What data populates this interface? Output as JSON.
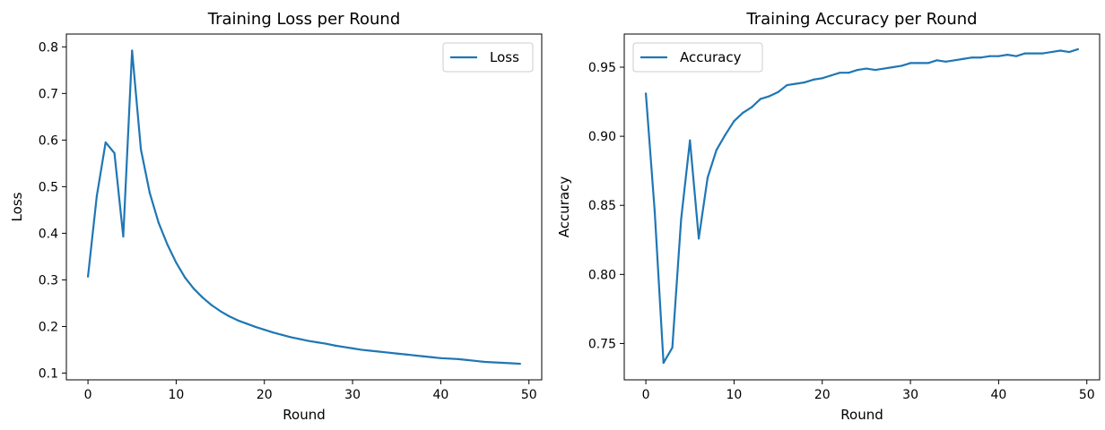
{
  "figure": {
    "line_color": "#1f77b4"
  },
  "chart_data": [
    {
      "type": "line",
      "title": "Training Loss per Round",
      "xlabel": "Round",
      "ylabel": "Loss",
      "xlim": [
        -2.45,
        51.45
      ],
      "ylim": [
        0.0855,
        0.8275
      ],
      "xticks": [
        0,
        10,
        20,
        30,
        40,
        50
      ],
      "yticks": [
        0.1,
        0.2,
        0.3,
        0.4,
        0.5,
        0.6,
        0.7,
        0.8
      ],
      "grid": false,
      "legend_position": "upper right",
      "series": [
        {
          "name": "Loss",
          "color": "#1f77b4",
          "x": [
            0,
            1,
            2,
            3,
            4,
            5,
            6,
            7,
            8,
            9,
            10,
            11,
            12,
            13,
            14,
            15,
            16,
            17,
            18,
            19,
            20,
            21,
            22,
            23,
            24,
            25,
            26,
            27,
            28,
            29,
            30,
            31,
            32,
            33,
            34,
            35,
            36,
            37,
            38,
            39,
            40,
            41,
            42,
            43,
            44,
            45,
            46,
            47,
            48,
            49
          ],
          "values": [
            0.307,
            0.48,
            0.595,
            0.572,
            0.393,
            0.792,
            0.58,
            0.487,
            0.423,
            0.376,
            0.337,
            0.305,
            0.281,
            0.262,
            0.246,
            0.233,
            0.222,
            0.213,
            0.206,
            0.199,
            0.193,
            0.187,
            0.182,
            0.177,
            0.173,
            0.169,
            0.166,
            0.163,
            0.159,
            0.156,
            0.153,
            0.15,
            0.148,
            0.146,
            0.144,
            0.142,
            0.14,
            0.138,
            0.136,
            0.134,
            0.132,
            0.131,
            0.13,
            0.128,
            0.126,
            0.124,
            0.123,
            0.122,
            0.121,
            0.12
          ]
        }
      ]
    },
    {
      "type": "line",
      "title": "Training Accuracy per Round",
      "xlabel": "Round",
      "ylabel": "Accuracy",
      "xlim": [
        -2.45,
        51.45
      ],
      "ylim": [
        0.7237,
        0.974
      ],
      "xticks": [
        0,
        10,
        20,
        30,
        40,
        50
      ],
      "yticks": [
        0.75,
        0.8,
        0.85,
        0.9,
        0.95
      ],
      "ytick_labels": [
        "0.75",
        "0.80",
        "0.85",
        "0.90",
        "0.95"
      ],
      "grid": false,
      "legend_position": "upper left",
      "series": [
        {
          "name": "Accuracy",
          "color": "#1f77b4",
          "x": [
            0,
            1,
            2,
            3,
            4,
            5,
            6,
            7,
            8,
            9,
            10,
            11,
            12,
            13,
            14,
            15,
            16,
            17,
            18,
            19,
            20,
            21,
            22,
            23,
            24,
            25,
            26,
            27,
            28,
            29,
            30,
            31,
            32,
            33,
            34,
            35,
            36,
            37,
            38,
            39,
            40,
            41,
            42,
            43,
            44,
            45,
            46,
            47,
            48,
            49
          ],
          "values": [
            0.931,
            0.846,
            0.736,
            0.747,
            0.84,
            0.897,
            0.826,
            0.87,
            0.89,
            0.901,
            0.911,
            0.917,
            0.921,
            0.927,
            0.929,
            0.932,
            0.937,
            0.938,
            0.939,
            0.941,
            0.942,
            0.944,
            0.946,
            0.946,
            0.948,
            0.949,
            0.948,
            0.949,
            0.95,
            0.951,
            0.953,
            0.953,
            0.953,
            0.955,
            0.954,
            0.955,
            0.956,
            0.957,
            0.957,
            0.958,
            0.958,
            0.959,
            0.958,
            0.96,
            0.96,
            0.96,
            0.961,
            0.962,
            0.961,
            0.963
          ]
        }
      ]
    }
  ]
}
